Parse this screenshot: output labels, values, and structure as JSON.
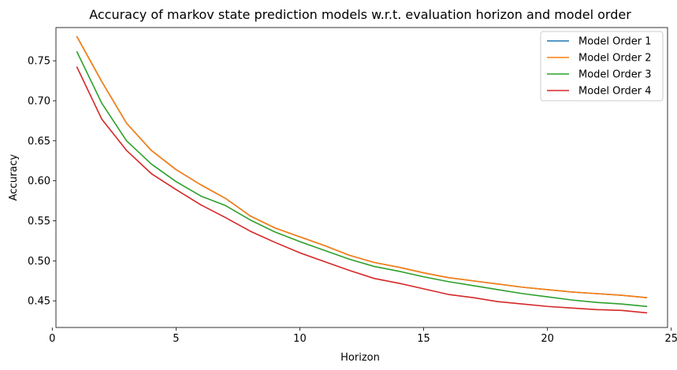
{
  "chart_data": {
    "type": "line",
    "title": "Accuracy of markov state prediction models w.r.t. evaluation horizon and model order",
    "xlabel": "Horizon",
    "ylabel": "Accuracy",
    "xlim": [
      0.15,
      24.85
    ],
    "ylim": [
      0.4167,
      0.7915
    ],
    "xticks": [
      0,
      5,
      10,
      15,
      20,
      25
    ],
    "yticks": [
      0.45,
      0.5,
      0.55,
      0.6,
      0.65,
      0.7,
      0.75
    ],
    "xtick_labels": [
      "0",
      "5",
      "10",
      "15",
      "20",
      "25"
    ],
    "ytick_labels": [
      "0.45",
      "0.50",
      "0.55",
      "0.60",
      "0.65",
      "0.70",
      "0.75"
    ],
    "grid": false,
    "legend": "top-right",
    "x": [
      1,
      2,
      3,
      4,
      5,
      6,
      7,
      8,
      9,
      10,
      11,
      12,
      13,
      14,
      15,
      16,
      17,
      18,
      19,
      20,
      21,
      22,
      23,
      24
    ],
    "series": [
      {
        "name": "Model Order 1",
        "color": "#1f77b4",
        "values": [
          0.78,
          0.724,
          0.672,
          0.638,
          0.614,
          0.595,
          0.578,
          0.556,
          0.541,
          0.53,
          0.519,
          0.507,
          0.498,
          0.492,
          0.485,
          0.479,
          0.475,
          0.471,
          0.467,
          0.464,
          0.461,
          0.459,
          0.457,
          0.454
        ]
      },
      {
        "name": "Model Order 2",
        "color": "#ff7f0e",
        "values": [
          0.78,
          0.724,
          0.672,
          0.638,
          0.614,
          0.595,
          0.578,
          0.556,
          0.541,
          0.53,
          0.519,
          0.507,
          0.498,
          0.492,
          0.485,
          0.479,
          0.475,
          0.471,
          0.467,
          0.464,
          0.461,
          0.459,
          0.457,
          0.454
        ]
      },
      {
        "name": "Model Order 3",
        "color": "#2ca02c",
        "values": [
          0.761,
          0.697,
          0.65,
          0.621,
          0.599,
          0.581,
          0.569,
          0.551,
          0.536,
          0.524,
          0.513,
          0.502,
          0.493,
          0.487,
          0.48,
          0.474,
          0.469,
          0.464,
          0.459,
          0.455,
          0.451,
          0.448,
          0.446,
          0.443
        ]
      },
      {
        "name": "Model Order 4",
        "color": "#d62728",
        "values": [
          0.742,
          0.677,
          0.638,
          0.609,
          0.589,
          0.57,
          0.554,
          0.537,
          0.523,
          0.51,
          0.499,
          0.488,
          0.478,
          0.472,
          0.465,
          0.458,
          0.454,
          0.449,
          0.446,
          0.443,
          0.441,
          0.439,
          0.438,
          0.435
        ]
      }
    ]
  }
}
